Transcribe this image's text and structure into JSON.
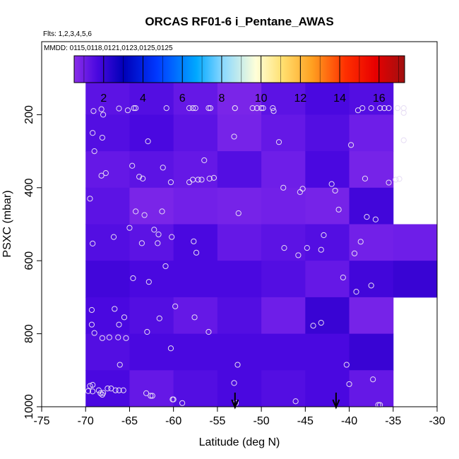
{
  "chart_data": {
    "type": "heatmap",
    "title": "ORCAS RF01-6 i_Pentane_AWAS",
    "flights_note": "Flts: 1,2,3,4,5,6",
    "mmdd_note": "MMDD: 0115,0118,0121,0123,0125,0125",
    "xlabel": "Latitude (deg N)",
    "ylabel": "PSXC (mbar)",
    "xlim": [
      -75,
      -30
    ],
    "ylim": [
      1000,
      0
    ],
    "x_ticks": [
      -75,
      -70,
      -65,
      -60,
      -55,
      -50,
      -45,
      -40,
      -35,
      -30
    ],
    "y_ticks": [
      200,
      400,
      600,
      800,
      1000
    ],
    "colorbar": {
      "range": [
        0.5,
        17.3
      ],
      "ticks": [
        2,
        4,
        6,
        8,
        10,
        12,
        14,
        16
      ]
    },
    "lat_bin_edges": [
      -70,
      -65,
      -60,
      -55,
      -50,
      -45,
      -40,
      -35,
      -30
    ],
    "pressure_bin_edges": [
      100,
      200,
      300,
      400,
      500,
      600,
      700,
      800,
      900,
      1000
    ],
    "cells": [
      [
        1.4,
        1.5,
        1.3,
        0.9,
        1.4,
        1.6,
        1.5,
        null
      ],
      [
        1.5,
        1.6,
        1.4,
        1.0,
        1.3,
        1.5,
        1.2,
        null
      ],
      [
        1.3,
        1.4,
        1.3,
        1.5,
        1.2,
        1.6,
        1.0,
        null
      ],
      [
        1.4,
        0.9,
        1.1,
        1.0,
        1.1,
        1.0,
        1.7,
        null
      ],
      [
        1.5,
        1.4,
        1.6,
        1.3,
        1.4,
        1.5,
        1.1,
        1.2
      ],
      [
        1.7,
        1.6,
        1.6,
        1.6,
        1.5,
        1.3,
        1.7,
        1.8
      ],
      [
        1.6,
        1.5,
        1.3,
        1.5,
        1.2,
        1.8,
        1.0,
        null
      ],
      [
        1.5,
        1.6,
        1.6,
        1.6,
        1.6,
        1.6,
        1.8,
        null
      ],
      [
        1.6,
        1.3,
        1.5,
        1.6,
        1.5,
        1.6,
        1.3,
        null
      ]
    ],
    "samples": [
      [
        -69.1,
        190
      ],
      [
        -68.2,
        185
      ],
      [
        -68.0,
        200
      ],
      [
        -66.2,
        183
      ],
      [
        -65.2,
        188
      ],
      [
        -64.5,
        182
      ],
      [
        -64.3,
        182
      ],
      [
        -60.8,
        182
      ],
      [
        -58.2,
        182
      ],
      [
        -57.8,
        182
      ],
      [
        -57.5,
        182
      ],
      [
        -56.0,
        182
      ],
      [
        -55.8,
        182
      ],
      [
        -53.0,
        182
      ],
      [
        -53.0,
        182
      ],
      [
        -51.0,
        182
      ],
      [
        -50.5,
        182
      ],
      [
        -50.0,
        182
      ],
      [
        -49.8,
        182
      ],
      [
        -48.7,
        182
      ],
      [
        -48.6,
        190
      ],
      [
        -39.0,
        188
      ],
      [
        -38.5,
        182
      ],
      [
        -37.5,
        182
      ],
      [
        -36.5,
        182
      ],
      [
        -36.0,
        182
      ],
      [
        -35.5,
        182
      ],
      [
        -34.5,
        182
      ],
      [
        -33.8,
        182
      ],
      [
        -33.8,
        195
      ],
      [
        -69.2,
        250
      ],
      [
        -68.1,
        263
      ],
      [
        -62.9,
        273
      ],
      [
        -53.1,
        260
      ],
      [
        -48.0,
        275
      ],
      [
        -39.8,
        283
      ],
      [
        -33.8,
        270
      ],
      [
        -69.0,
        300
      ],
      [
        -64.7,
        340
      ],
      [
        -61.2,
        345
      ],
      [
        -56.5,
        325
      ],
      [
        -68.2,
        367
      ],
      [
        -67.7,
        360
      ],
      [
        -63.9,
        370
      ],
      [
        -63.5,
        375
      ],
      [
        -60.3,
        385
      ],
      [
        -58.2,
        385
      ],
      [
        -57.8,
        378
      ],
      [
        -57.2,
        378
      ],
      [
        -56.8,
        378
      ],
      [
        -55.9,
        375
      ],
      [
        -55.4,
        373
      ],
      [
        -47.5,
        400
      ],
      [
        -45.6,
        412
      ],
      [
        -45.3,
        403
      ],
      [
        -42.0,
        390
      ],
      [
        -41.6,
        408
      ],
      [
        -38.2,
        375
      ],
      [
        -35.5,
        386
      ],
      [
        -34.7,
        378
      ],
      [
        -34.3,
        376
      ],
      [
        -69.5,
        430
      ],
      [
        -64.3,
        465
      ],
      [
        -63.3,
        475
      ],
      [
        -61.3,
        465
      ],
      [
        -41.2,
        460
      ],
      [
        -38.0,
        480
      ],
      [
        -37.0,
        487
      ],
      [
        -65.0,
        510
      ],
      [
        -62.2,
        515
      ],
      [
        -61.7,
        528
      ],
      [
        -69.2,
        553
      ],
      [
        -66.8,
        535
      ],
      [
        -63.6,
        552
      ],
      [
        -60.2,
        535
      ],
      [
        -61.8,
        552
      ],
      [
        -57.7,
        547
      ],
      [
        -57.4,
        578
      ],
      [
        -52.6,
        470
      ],
      [
        -47.4,
        565
      ],
      [
        -45.8,
        585
      ],
      [
        -44.8,
        565
      ],
      [
        -43.2,
        570
      ],
      [
        -42.9,
        530
      ],
      [
        -39.4,
        580
      ],
      [
        -38.7,
        548
      ],
      [
        -60.9,
        615
      ],
      [
        -64.6,
        648
      ],
      [
        -62.8,
        658
      ],
      [
        -40.7,
        646
      ],
      [
        -39.2,
        685
      ],
      [
        -37.5,
        668
      ],
      [
        -59.8,
        725
      ],
      [
        -69.3,
        735
      ],
      [
        -66.7,
        732
      ],
      [
        -69.3,
        775
      ],
      [
        -66.2,
        775
      ],
      [
        -65.6,
        755
      ],
      [
        -69.0,
        798
      ],
      [
        -68.1,
        812
      ],
      [
        -67.3,
        810
      ],
      [
        -66.3,
        810
      ],
      [
        -65.4,
        812
      ],
      [
        -63.0,
        795
      ],
      [
        -61.6,
        758
      ],
      [
        -57.6,
        755
      ],
      [
        -44.1,
        778
      ],
      [
        -43.2,
        770
      ],
      [
        -60.3,
        840
      ],
      [
        -56.0,
        795
      ],
      [
        -66.1,
        885
      ],
      [
        -53.1,
        935
      ],
      [
        -52.7,
        885
      ],
      [
        -40.3,
        885
      ],
      [
        -40.0,
        938
      ],
      [
        -37.3,
        925
      ],
      [
        -69.5,
        943
      ],
      [
        -69.2,
        940
      ],
      [
        -69.7,
        957
      ],
      [
        -69.2,
        958
      ],
      [
        -68.5,
        955
      ],
      [
        -68.3,
        963
      ],
      [
        -68.1,
        967
      ],
      [
        -68.0,
        962
      ],
      [
        -67.5,
        950
      ],
      [
        -67.1,
        950
      ],
      [
        -66.6,
        955
      ],
      [
        -66.2,
        955
      ],
      [
        -65.7,
        955
      ],
      [
        -63.1,
        963
      ],
      [
        -62.6,
        970
      ],
      [
        -62.4,
        970
      ],
      [
        -60.1,
        980
      ],
      [
        -60.0,
        980
      ],
      [
        -59.0,
        990
      ],
      [
        -52.9,
        990
      ],
      [
        -46.1,
        985
      ],
      [
        -36.7,
        995
      ],
      [
        -36.5,
        995
      ]
    ],
    "arrow_latitudes": [
      -53.0,
      -41.5
    ]
  }
}
